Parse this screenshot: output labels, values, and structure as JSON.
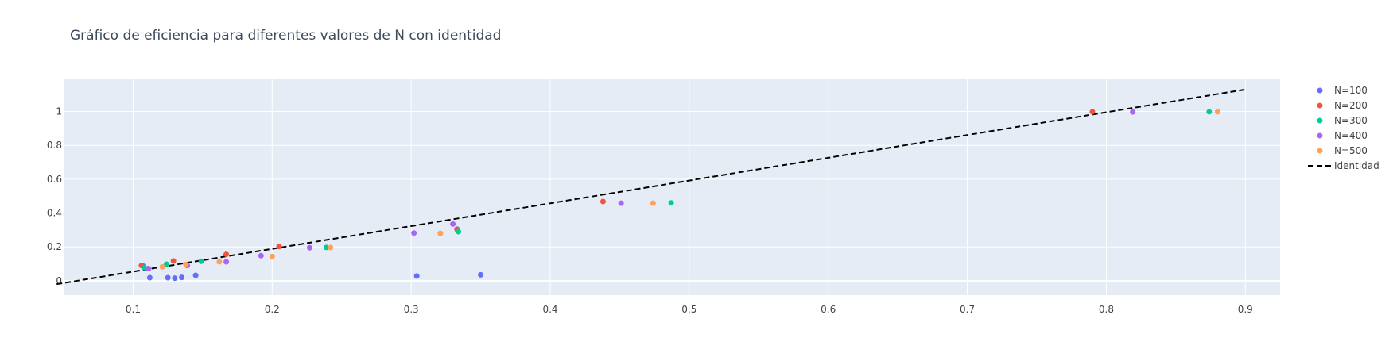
{
  "chart_data": {
    "type": "scatter",
    "title": "Gráfico de eficiencia para diferentes valores de N con identidad",
    "xlabel": "",
    "ylabel": "",
    "xlim": [
      0.05,
      0.925
    ],
    "ylim": [
      -0.085,
      1.19
    ],
    "x_ticks": [
      0.1,
      0.2,
      0.3,
      0.4,
      0.5,
      0.6,
      0.7,
      0.8,
      0.9
    ],
    "x_tick_labels": [
      "0.1",
      "0.2",
      "0.3",
      "0.4",
      "0.5",
      "0.6",
      "0.7",
      "0.8",
      "0.9"
    ],
    "y_ticks": [
      0,
      0.2,
      0.4,
      0.6,
      0.8,
      1
    ],
    "y_tick_labels": [
      "0",
      "0.2",
      "0.4",
      "0.6",
      "0.8",
      "1"
    ],
    "grid": true,
    "legend_position": "right",
    "background_color": "#e5ecf6",
    "series": [
      {
        "name": "N=100",
        "color": "#636efa",
        "points": [
          [
            0.107,
            0.088
          ],
          [
            0.112,
            0.018
          ],
          [
            0.125,
            0.018
          ],
          [
            0.13,
            0.015
          ],
          [
            0.135,
            0.02
          ],
          [
            0.145,
            0.032
          ],
          [
            0.304,
            0.028
          ],
          [
            0.35,
            0.035
          ],
          [
            0.333,
            0.305
          ]
        ]
      },
      {
        "name": "N=200",
        "color": "#ef553b",
        "points": [
          [
            0.106,
            0.09
          ],
          [
            0.129,
            0.117
          ],
          [
            0.167,
            0.156
          ],
          [
            0.205,
            0.202
          ],
          [
            0.333,
            0.303
          ],
          [
            0.438,
            0.468
          ],
          [
            0.79,
            0.998
          ]
        ]
      },
      {
        "name": "N=300",
        "color": "#00cc96",
        "points": [
          [
            0.108,
            0.078
          ],
          [
            0.124,
            0.098
          ],
          [
            0.149,
            0.115
          ],
          [
            0.239,
            0.197
          ],
          [
            0.334,
            0.29
          ],
          [
            0.487,
            0.46
          ],
          [
            0.874,
            0.998
          ]
        ]
      },
      {
        "name": "N=400",
        "color": "#ab63fa",
        "points": [
          [
            0.111,
            0.072
          ],
          [
            0.139,
            0.09
          ],
          [
            0.167,
            0.112
          ],
          [
            0.192,
            0.148
          ],
          [
            0.227,
            0.195
          ],
          [
            0.302,
            0.282
          ],
          [
            0.33,
            0.335
          ],
          [
            0.451,
            0.458
          ],
          [
            0.819,
            0.997
          ]
        ]
      },
      {
        "name": "N=500",
        "color": "#ffa15a",
        "points": [
          [
            0.121,
            0.082
          ],
          [
            0.138,
            0.096
          ],
          [
            0.162,
            0.112
          ],
          [
            0.2,
            0.143
          ],
          [
            0.242,
            0.196
          ],
          [
            0.321,
            0.28
          ],
          [
            0.474,
            0.458
          ],
          [
            0.88,
            0.998
          ]
        ]
      }
    ],
    "identity_line": {
      "name": "Identidad",
      "color": "#000000",
      "dash": "dashed",
      "x": [
        0.045,
        0.9
      ],
      "y": [
        -0.02,
        1.13
      ]
    }
  }
}
